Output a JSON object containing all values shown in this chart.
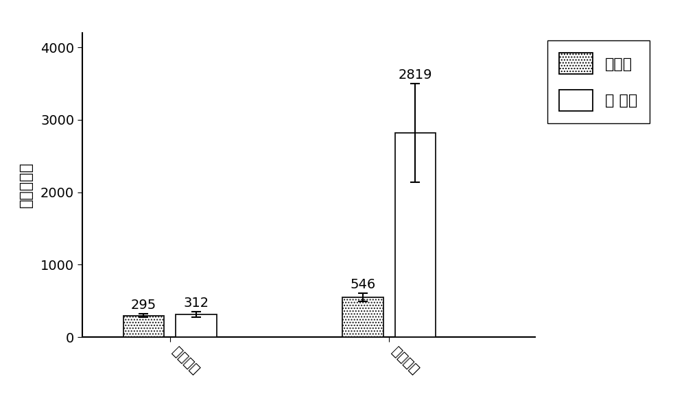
{
  "categories": [
    "阴性样本",
    "阳性样本"
  ],
  "group1_values": [
    295,
    546
  ],
  "group2_values": [
    312,
    2819
  ],
  "group1_errors": [
    25,
    55
  ],
  "group2_errors": [
    35,
    680
  ],
  "group1_label": "原探针",
  "group2_label": "新 探针",
  "ylabel": "荧光信号値",
  "bar_width": 0.28,
  "ylim": [
    0,
    4200
  ],
  "yticks": [
    0,
    1000,
    2000,
    3000,
    4000
  ],
  "bg_color": "#ffffff",
  "bar_edge_color": "#111111",
  "annotation_fontsize": 14,
  "label_fontsize": 16,
  "tick_fontsize": 14,
  "legend_fontsize": 16
}
